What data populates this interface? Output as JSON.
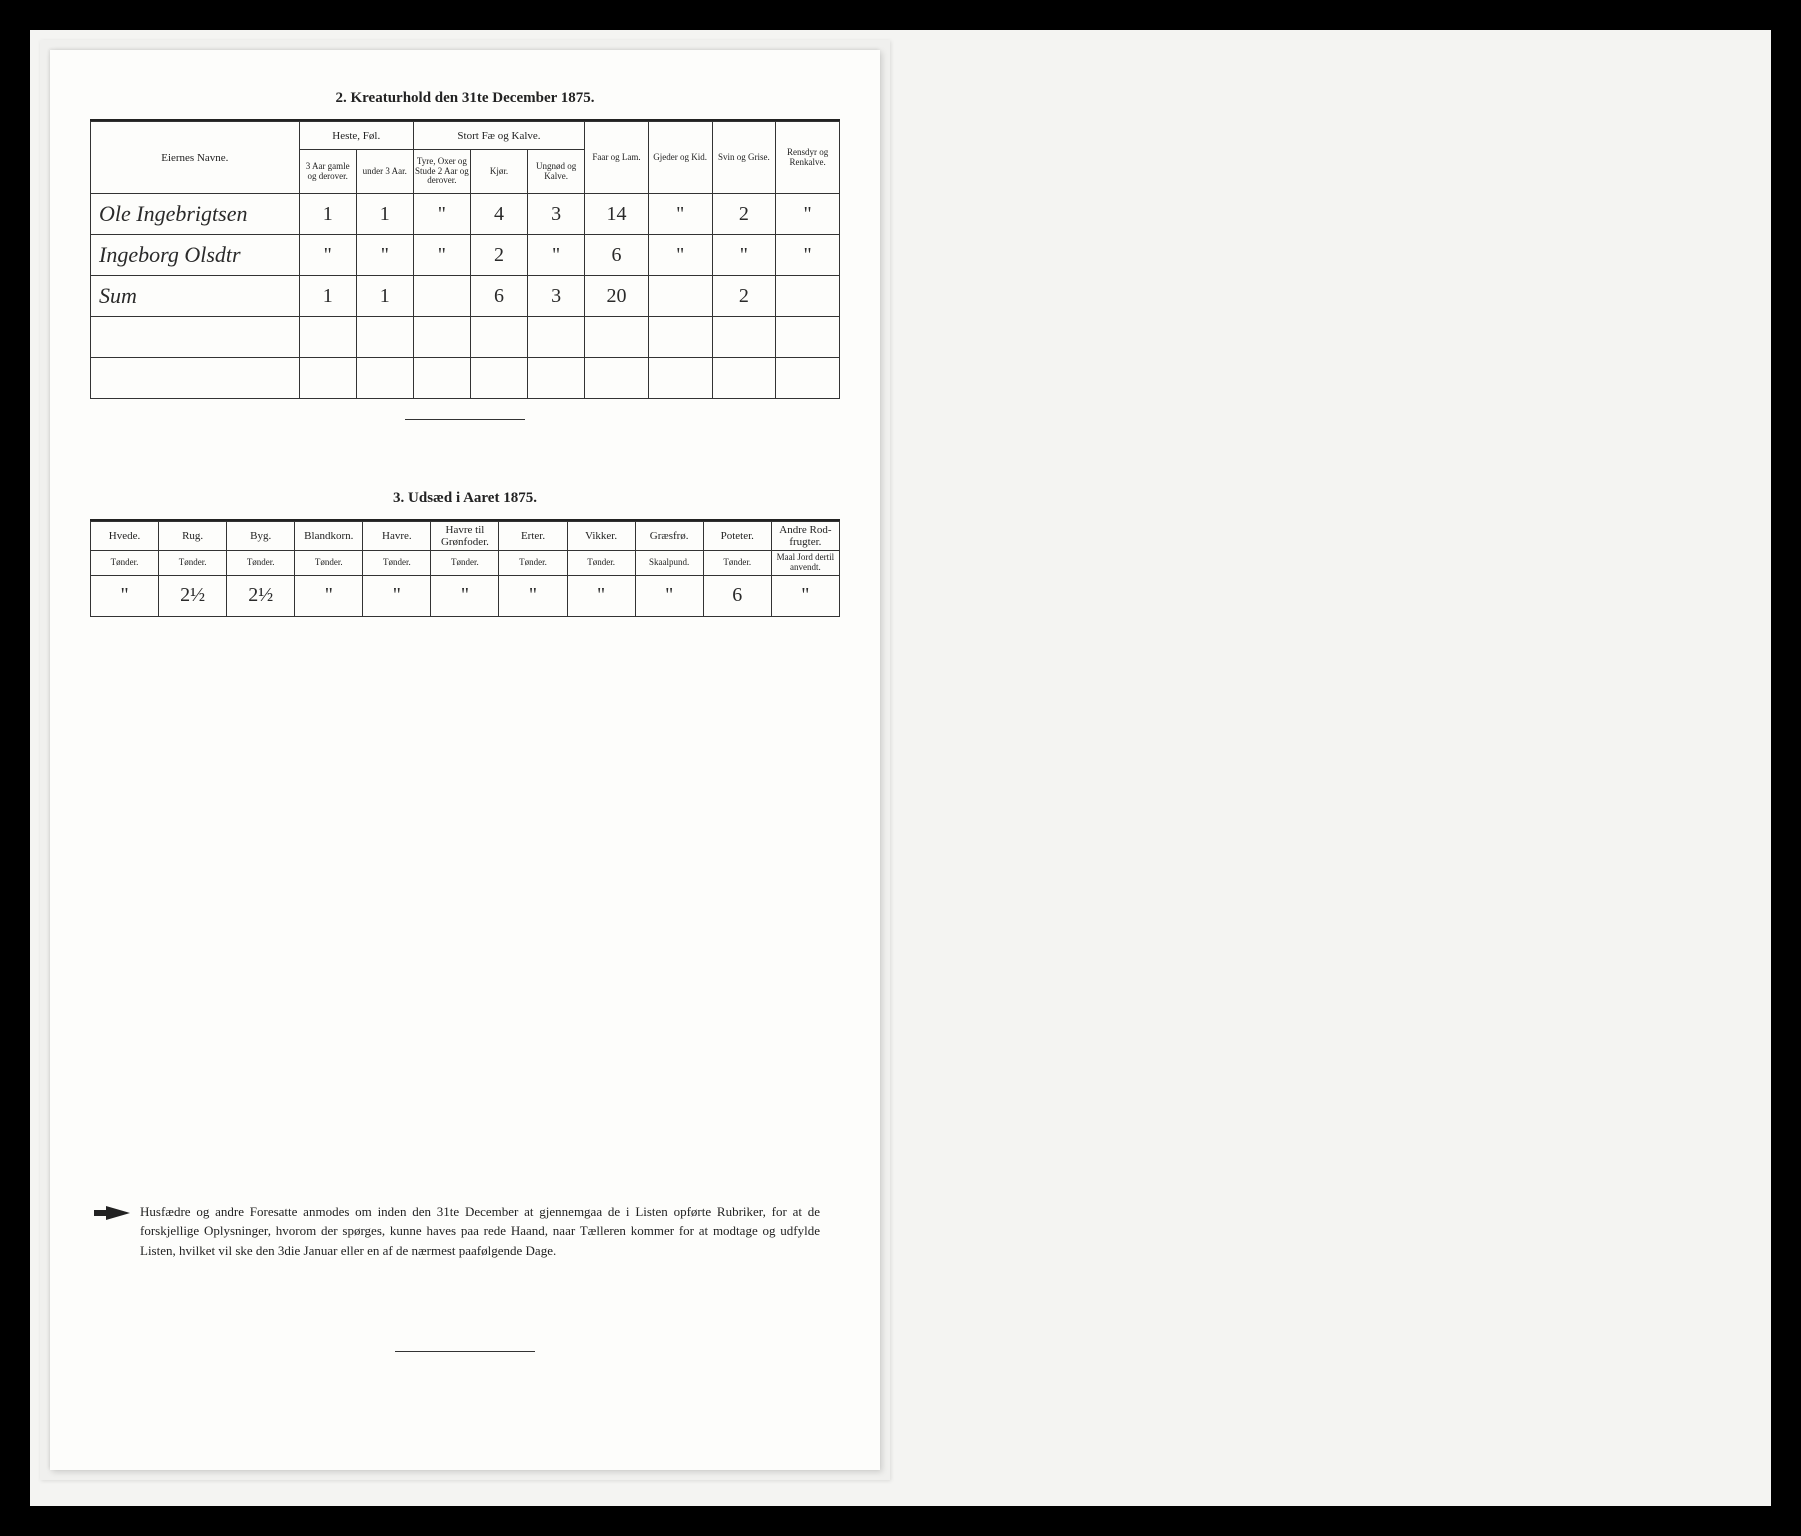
{
  "section2": {
    "title": "2.  Kreaturhold den 31te December 1875.",
    "header": {
      "name": "Eiernes Navne.",
      "group_horses": "Heste, Føl.",
      "group_cattle": "Stort Fæ og Kalve.",
      "sheep": "Faar og Lam.",
      "goats": "Gjeder og Kid.",
      "pigs": "Svin og Grise.",
      "reindeer": "Rensdyr og Renkalve.",
      "horses_old": "3 Aar gamle og derover.",
      "horses_young": "under 3 Aar.",
      "bulls": "Tyre, Oxer og Stude 2 Aar og derover.",
      "cows": "Kjør.",
      "calves": "Ungnød og Kalve."
    },
    "rows": [
      {
        "name": "Ole Ingebrigtsen",
        "c": [
          "1",
          "1",
          "\"",
          "4",
          "3",
          "14",
          "\"",
          "2",
          "\""
        ]
      },
      {
        "name": "Ingeborg Olsdtr",
        "c": [
          "\"",
          "\"",
          "\"",
          "2",
          "\"",
          "6",
          "\"",
          "\"",
          "\""
        ]
      },
      {
        "name": "Sum",
        "c": [
          "1",
          "1",
          "",
          "6",
          "3",
          "20",
          "",
          "2",
          ""
        ]
      }
    ]
  },
  "section3": {
    "title": "3.  Udsæd i Aaret 1875.",
    "cols": [
      {
        "top": "Hvede.",
        "sub": "Tønder."
      },
      {
        "top": "Rug.",
        "sub": "Tønder."
      },
      {
        "top": "Byg.",
        "sub": "Tønder."
      },
      {
        "top": "Blandkorn.",
        "sub": "Tønder."
      },
      {
        "top": "Havre.",
        "sub": "Tønder."
      },
      {
        "top": "Havre til Grønfoder.",
        "sub": "Tønder."
      },
      {
        "top": "Erter.",
        "sub": "Tønder."
      },
      {
        "top": "Vikker.",
        "sub": "Tønder."
      },
      {
        "top": "Græsfrø.",
        "sub": "Skaalpund."
      },
      {
        "top": "Poteter.",
        "sub": "Tønder."
      },
      {
        "top": "Andre Rod-frugter.",
        "sub": "Maal Jord dertil anvendt."
      }
    ],
    "row": [
      "\"",
      "2½",
      "2½",
      "\"",
      "\"",
      "\"",
      "\"",
      "\"",
      "\"",
      "6",
      "\""
    ]
  },
  "footnote": "Husfædre og andre Foresatte anmodes om inden den 31te December at gjennemgaa de i Listen opførte Rubriker, for at de forskjellige Oplysninger, hvorom der spørges, kunne haves paa rede Haand, naar Tælleren kommer for at modtage og udfylde Listen, hvilket vil ske den 3die Januar eller en af de nærmest paafølgende Dage."
}
